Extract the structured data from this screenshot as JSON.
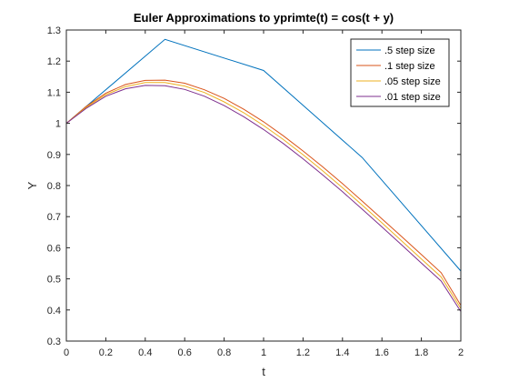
{
  "chart_data": {
    "type": "line",
    "title": "Euler Approximations to yprimte(t) = cos(t + y)",
    "xlabel": "t",
    "ylabel": "Y",
    "xlim": [
      0,
      2
    ],
    "ylim": [
      0.3,
      1.3
    ],
    "xticks": [
      0,
      0.2,
      0.4,
      0.6,
      0.8,
      1,
      1.2,
      1.4,
      1.6,
      1.8,
      2
    ],
    "xtick_labels": [
      "0",
      "0.2",
      "0.4",
      "0.6",
      "0.8",
      "1",
      "1.2",
      "1.4",
      "1.6",
      "1.8",
      "2"
    ],
    "yticks": [
      0.3,
      0.4,
      0.5,
      0.6,
      0.7,
      0.8,
      0.9,
      1.0,
      1.1,
      1.2,
      1.3
    ],
    "ytick_labels": [
      "0.3",
      "0.4",
      "0.5",
      "0.6",
      "0.7",
      "0.8",
      "0.9",
      "1",
      "1.1",
      "1.2",
      "1.3"
    ],
    "grid": false,
    "legend_position": "top-right",
    "series": [
      {
        "name": ".5 step size",
        "color": "#0072bd",
        "x": [
          0,
          0.5,
          1.0,
          1.5,
          2.0
        ],
        "y": [
          1.0,
          1.27,
          1.17,
          0.89,
          0.525
        ]
      },
      {
        "name": ".1 step size",
        "color": "#d95319",
        "x": [
          0,
          0.1,
          0.2,
          0.3,
          0.4,
          0.5,
          0.6,
          0.7,
          0.8,
          0.9,
          1.0,
          1.1,
          1.2,
          1.3,
          1.4,
          1.5,
          1.6,
          1.7,
          1.8,
          1.9,
          2.0
        ],
        "y": [
          1.0,
          1.054,
          1.097,
          1.125,
          1.138,
          1.139,
          1.129,
          1.108,
          1.08,
          1.045,
          1.005,
          0.96,
          0.911,
          0.86,
          0.806,
          0.75,
          0.693,
          0.636,
          0.578,
          0.52,
          0.415
        ]
      },
      {
        "name": ".05 step size",
        "color": "#edb120",
        "x": [
          0,
          0.1,
          0.2,
          0.3,
          0.4,
          0.5,
          0.6,
          0.7,
          0.8,
          0.9,
          1.0,
          1.1,
          1.2,
          1.3,
          1.4,
          1.5,
          1.6,
          1.7,
          1.8,
          1.9,
          2.0
        ],
        "y": [
          1.0,
          1.051,
          1.092,
          1.118,
          1.131,
          1.131,
          1.12,
          1.099,
          1.069,
          1.034,
          0.993,
          0.948,
          0.899,
          0.847,
          0.793,
          0.737,
          0.68,
          0.622,
          0.564,
          0.506,
          0.405
        ]
      },
      {
        "name": ".01 step size",
        "color": "#7e2f8e",
        "x": [
          0,
          0.1,
          0.2,
          0.3,
          0.4,
          0.5,
          0.6,
          0.7,
          0.8,
          0.9,
          1.0,
          1.1,
          1.2,
          1.3,
          1.4,
          1.5,
          1.6,
          1.7,
          1.8,
          1.9,
          2.0
        ],
        "y": [
          1.0,
          1.048,
          1.087,
          1.111,
          1.122,
          1.121,
          1.109,
          1.087,
          1.057,
          1.021,
          0.98,
          0.935,
          0.886,
          0.834,
          0.78,
          0.724,
          0.667,
          0.609,
          0.551,
          0.493,
          0.395
        ]
      }
    ]
  }
}
